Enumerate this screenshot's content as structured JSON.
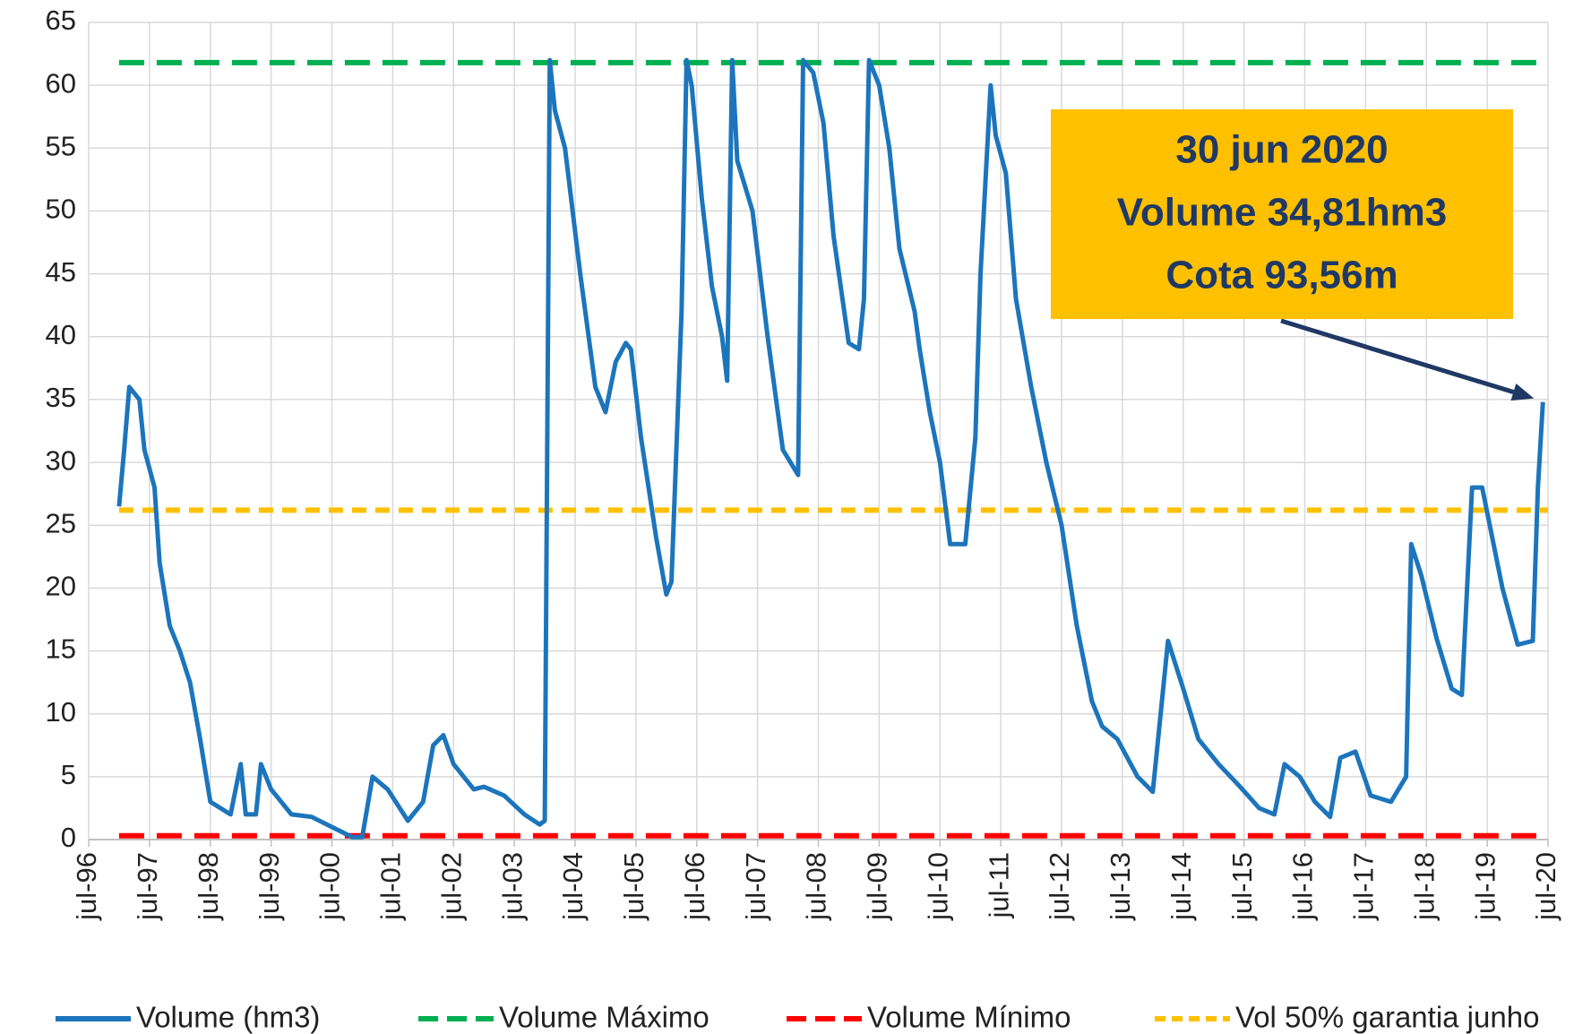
{
  "chart_data": {
    "type": "line",
    "grid": true,
    "legend": "bottom",
    "xlim": [
      "1996-07",
      "2020-07"
    ],
    "xticks": [
      {
        "value": "1996-07",
        "label": "jul-96"
      },
      {
        "value": "1997-07",
        "label": "jul-97"
      },
      {
        "value": "1998-07",
        "label": "jul-98"
      },
      {
        "value": "1999-07",
        "label": "jul-99"
      },
      {
        "value": "2000-07",
        "label": "jul-00"
      },
      {
        "value": "2001-07",
        "label": "jul-01"
      },
      {
        "value": "2002-07",
        "label": "jul-02"
      },
      {
        "value": "2003-07",
        "label": "jul-03"
      },
      {
        "value": "2004-07",
        "label": "jul-04"
      },
      {
        "value": "2005-07",
        "label": "jul-05"
      },
      {
        "value": "2006-07",
        "label": "jul-06"
      },
      {
        "value": "2007-07",
        "label": "jul-07"
      },
      {
        "value": "2008-07",
        "label": "jul-08"
      },
      {
        "value": "2009-07",
        "label": "jul-09"
      },
      {
        "value": "2010-07",
        "label": "jul-10"
      },
      {
        "value": "2011-07",
        "label": "jul-11"
      },
      {
        "value": "2012-07",
        "label": "jul-12"
      },
      {
        "value": "2013-07",
        "label": "jul-13"
      },
      {
        "value": "2014-07",
        "label": "jul-14"
      },
      {
        "value": "2015-07",
        "label": "jul-15"
      },
      {
        "value": "2016-07",
        "label": "jul-16"
      },
      {
        "value": "2017-07",
        "label": "jul-17"
      },
      {
        "value": "2018-07",
        "label": "jul-18"
      },
      {
        "value": "2019-07",
        "label": "jul-19"
      },
      {
        "value": "2020-07",
        "label": "jul-20"
      }
    ],
    "ylim": [
      0,
      65
    ],
    "yticks": [
      0,
      5,
      10,
      15,
      20,
      25,
      30,
      35,
      40,
      45,
      50,
      55,
      60,
      65
    ],
    "annotation": {
      "lines": [
        "30 jun 2020",
        "Volume 34,81hm3",
        "Cota 93,56m"
      ]
    },
    "series": [
      {
        "name": "Volume (hm3)",
        "color": "#1c75bc",
        "dash": "solid",
        "x": [
          "1997-01",
          "1997-02",
          "1997-03",
          "1997-05",
          "1997-06",
          "1997-08",
          "1997-09",
          "1997-11",
          "1998-01",
          "1998-03",
          "1998-05",
          "1998-07",
          "1998-11",
          "1999-01",
          "1999-02",
          "1999-04",
          "1999-05",
          "1999-07",
          "1999-11",
          "2000-03",
          "2000-07",
          "2000-11",
          "2001-01",
          "2001-03",
          "2001-06",
          "2001-10",
          "2002-01",
          "2002-03",
          "2002-05",
          "2002-07",
          "2002-11",
          "2003-01",
          "2003-05",
          "2003-09",
          "2003-12",
          "2004-01",
          "2004-02",
          "2004-03",
          "2004-05",
          "2004-08",
          "2004-11",
          "2005-01",
          "2005-03",
          "2005-05",
          "2005-06",
          "2005-08",
          "2005-11",
          "2006-01",
          "2006-02",
          "2006-04",
          "2006-05",
          "2006-06",
          "2006-08",
          "2006-10",
          "2006-12",
          "2007-01",
          "2007-02",
          "2007-03",
          "2007-06",
          "2007-09",
          "2007-12",
          "2008-03",
          "2008-04",
          "2008-06",
          "2008-08",
          "2008-10",
          "2009-01",
          "2009-03",
          "2009-04",
          "2009-05",
          "2009-07",
          "2009-09",
          "2009-11",
          "2010-02",
          "2010-03",
          "2010-05",
          "2010-07",
          "2010-09",
          "2010-12",
          "2011-02",
          "2011-03",
          "2011-05",
          "2011-06",
          "2011-08",
          "2011-10",
          "2012-01",
          "2012-04",
          "2012-07",
          "2012-10",
          "2013-01",
          "2013-03",
          "2013-06",
          "2013-10",
          "2014-01",
          "2014-04",
          "2014-07",
          "2014-10",
          "2015-02",
          "2015-06",
          "2015-10",
          "2016-01",
          "2016-03",
          "2016-06",
          "2016-09",
          "2016-12",
          "2017-02",
          "2017-05",
          "2017-08",
          "2017-12",
          "2018-03",
          "2018-04",
          "2018-06",
          "2018-09",
          "2018-12",
          "2019-02",
          "2019-04",
          "2019-06",
          "2019-10",
          "2020-01",
          "2020-04",
          "2020-05",
          "2020-06"
        ],
        "values": [
          26.5,
          31,
          36,
          35,
          31,
          28,
          22,
          17,
          15,
          12.5,
          8,
          3,
          2,
          6,
          2,
          2,
          6,
          4,
          2,
          1.8,
          1,
          0.2,
          0.2,
          5,
          4,
          1.5,
          3,
          7.5,
          8.3,
          6,
          4,
          4.2,
          3.5,
          2,
          1.2,
          1.5,
          62,
          58,
          55,
          45,
          36,
          34,
          38,
          39.5,
          39,
          32,
          24,
          19.5,
          20.5,
          42,
          62,
          60,
          51,
          44,
          40,
          36.5,
          62,
          54,
          50,
          40,
          31,
          29,
          62,
          61,
          57,
          48,
          39.5,
          39,
          43,
          62,
          60,
          55,
          47,
          42,
          39,
          34,
          30,
          23.5,
          23.5,
          32,
          45,
          60,
          56,
          53,
          43,
          36,
          30,
          25,
          17,
          11,
          9,
          8,
          5,
          3.8,
          15.8,
          12,
          8,
          6,
          4.3,
          2.5,
          2,
          6,
          5,
          3,
          1.8,
          6.5,
          7,
          3.5,
          3,
          5,
          23.5,
          21,
          16,
          12,
          11.5,
          28,
          28,
          20,
          15.5,
          15.8,
          28,
          34.81
        ]
      },
      {
        "name": "Volume Máximo",
        "color": "#00b050",
        "dash": "long",
        "x": [
          "1997-01",
          "2020-07"
        ],
        "values": [
          61.8,
          61.8
        ]
      },
      {
        "name": "Volume Mínimo",
        "color": "#ff0000",
        "dash": "long",
        "x": [
          "1997-01",
          "2020-07"
        ],
        "values": [
          0.3,
          0.3
        ]
      },
      {
        "name": "Vol 50% garantia junho",
        "color": "#ffc000",
        "dash": "short",
        "x": [
          "1997-01",
          "2020-07"
        ],
        "values": [
          26.2,
          26.2
        ]
      }
    ]
  }
}
